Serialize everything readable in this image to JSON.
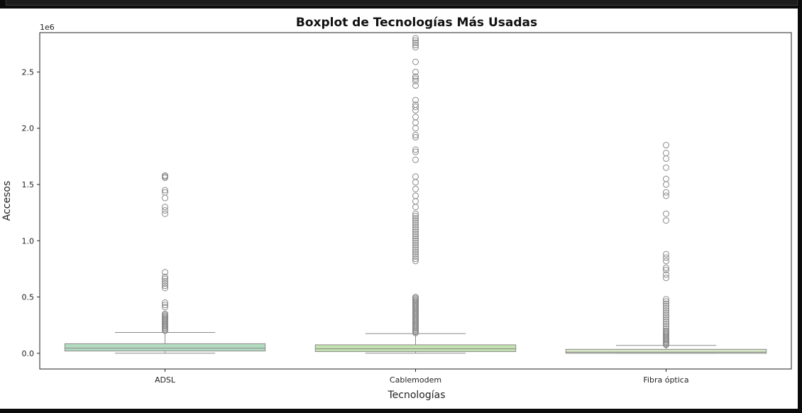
{
  "chart_data": {
    "type": "box",
    "title": "Boxplot de Tecnologías Más Usadas",
    "xlabel": "Tecnologías",
    "ylabel": "Accesos",
    "y_offset_label": "1e6",
    "ylim": [
      -0.14,
      2.85
    ],
    "yticks": [
      0.0,
      0.5,
      1.0,
      1.5,
      2.0,
      2.5
    ],
    "ytick_labels": [
      "0.0",
      "0.5",
      "1.0",
      "1.5",
      "2.0",
      "2.5"
    ],
    "categories": [
      "ADSL",
      "Cablemodem",
      "Fibra óptica"
    ],
    "colors": [
      "#b3dbc0",
      "#c4e2b0",
      "#d4e6c4"
    ],
    "box_edge_color": "#8a8a8a",
    "series": [
      {
        "name": "ADSL",
        "whisker_low": 0.0,
        "q1": 0.02,
        "median": 0.045,
        "q3": 0.085,
        "whisker_high": 0.185,
        "outliers": [
          0.2,
          0.21,
          0.22,
          0.23,
          0.24,
          0.25,
          0.26,
          0.27,
          0.28,
          0.29,
          0.3,
          0.31,
          0.32,
          0.33,
          0.34,
          0.35,
          0.41,
          0.43,
          0.45,
          0.58,
          0.6,
          0.62,
          0.64,
          0.66,
          0.68,
          0.72,
          1.24,
          1.27,
          1.3,
          1.38,
          1.43,
          1.45,
          1.56,
          1.57,
          1.58
        ]
      },
      {
        "name": "Cablemodem",
        "whisker_low": 0.0,
        "q1": 0.015,
        "median": 0.04,
        "q3": 0.075,
        "whisker_high": 0.175,
        "outliers": [
          0.18,
          0.19,
          0.2,
          0.21,
          0.22,
          0.23,
          0.24,
          0.25,
          0.26,
          0.27,
          0.28,
          0.29,
          0.3,
          0.31,
          0.32,
          0.33,
          0.34,
          0.35,
          0.36,
          0.37,
          0.38,
          0.39,
          0.4,
          0.41,
          0.42,
          0.43,
          0.44,
          0.45,
          0.46,
          0.47,
          0.48,
          0.49,
          0.5,
          0.82,
          0.84,
          0.86,
          0.88,
          0.9,
          0.92,
          0.94,
          0.96,
          0.98,
          1.0,
          1.02,
          1.04,
          1.06,
          1.08,
          1.1,
          1.12,
          1.14,
          1.16,
          1.18,
          1.2,
          1.22,
          1.24,
          1.3,
          1.35,
          1.4,
          1.46,
          1.52,
          1.57,
          1.72,
          1.79,
          1.81,
          1.92,
          1.94,
          2.0,
          2.05,
          2.1,
          2.16,
          2.19,
          2.21,
          2.25,
          2.38,
          2.42,
          2.44,
          2.46,
          2.5,
          2.59,
          2.72,
          2.74,
          2.76,
          2.78,
          2.8
        ]
      },
      {
        "name": "Fibra óptica",
        "whisker_low": 0.0,
        "q1": 0.0,
        "median": 0.01,
        "q3": 0.035,
        "whisker_high": 0.07,
        "outliers": [
          0.075,
          0.08,
          0.09,
          0.1,
          0.11,
          0.12,
          0.13,
          0.14,
          0.15,
          0.16,
          0.17,
          0.18,
          0.19,
          0.2,
          0.22,
          0.24,
          0.26,
          0.28,
          0.3,
          0.32,
          0.34,
          0.36,
          0.38,
          0.4,
          0.42,
          0.44,
          0.46,
          0.48,
          0.67,
          0.7,
          0.74,
          0.76,
          0.82,
          0.85,
          0.88,
          1.18,
          1.24,
          1.4,
          1.43,
          1.5,
          1.55,
          1.65,
          1.73,
          1.78,
          1.85
        ]
      }
    ]
  }
}
